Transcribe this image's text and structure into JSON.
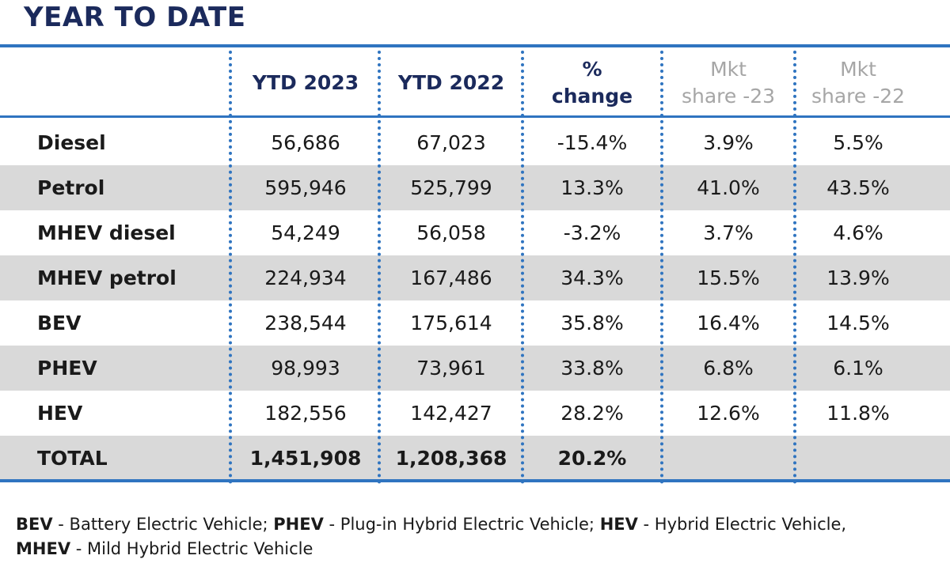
{
  "title": "YEAR TO DATE",
  "columns": {
    "ytd2023": "YTD 2023",
    "ytd2022": "YTD 2022",
    "pct_line1": "%",
    "pct_line2": "change",
    "share23_line1": "Mkt",
    "share23_line2": "share -23",
    "share22_line1": "Mkt",
    "share22_line2": "share -22"
  },
  "rows": [
    {
      "label": "Diesel",
      "ytd2023": "56,686",
      "ytd2022": "67,023",
      "pct": "-15.4%",
      "share23": "3.9%",
      "share22": "5.5%"
    },
    {
      "label": "Petrol",
      "ytd2023": "595,946",
      "ytd2022": "525,799",
      "pct": "13.3%",
      "share23": "41.0%",
      "share22": "43.5%"
    },
    {
      "label": "MHEV diesel",
      "ytd2023": "54,249",
      "ytd2022": "56,058",
      "pct": "-3.2%",
      "share23": "3.7%",
      "share22": "4.6%"
    },
    {
      "label": "MHEV petrol",
      "ytd2023": "224,934",
      "ytd2022": "167,486",
      "pct": "34.3%",
      "share23": "15.5%",
      "share22": "13.9%"
    },
    {
      "label": "BEV",
      "ytd2023": "238,544",
      "ytd2022": "175,614",
      "pct": "35.8%",
      "share23": "16.4%",
      "share22": "14.5%"
    },
    {
      "label": "PHEV",
      "ytd2023": "98,993",
      "ytd2022": "73,961",
      "pct": "33.8%",
      "share23": "6.8%",
      "share22": "6.1%"
    },
    {
      "label": "HEV",
      "ytd2023": "182,556",
      "ytd2022": "142,427",
      "pct": "28.2%",
      "share23": "12.6%",
      "share22": "11.8%"
    },
    {
      "label": "TOTAL",
      "ytd2023": "1,451,908",
      "ytd2022": "1,208,368",
      "pct": "20.2%",
      "share23": "",
      "share22": ""
    }
  ],
  "footnote": {
    "bev_abbr": "BEV",
    "bev_desc": " - Battery Electric Vehicle; ",
    "phev_abbr": "PHEV",
    "phev_desc": " - Plug-in Hybrid Electric Vehicle; ",
    "hev_abbr": "HEV",
    "hev_desc": " - Hybrid Electric Vehicle,",
    "mhev_abbr": "MHEV",
    "mhev_desc": " - Mild Hybrid Electric Vehicle"
  },
  "colors": {
    "title": "#1b2a5c",
    "rule": "#2f74c0",
    "shade": "#d9d9d9",
    "gray_header": "#a6a6a6"
  }
}
